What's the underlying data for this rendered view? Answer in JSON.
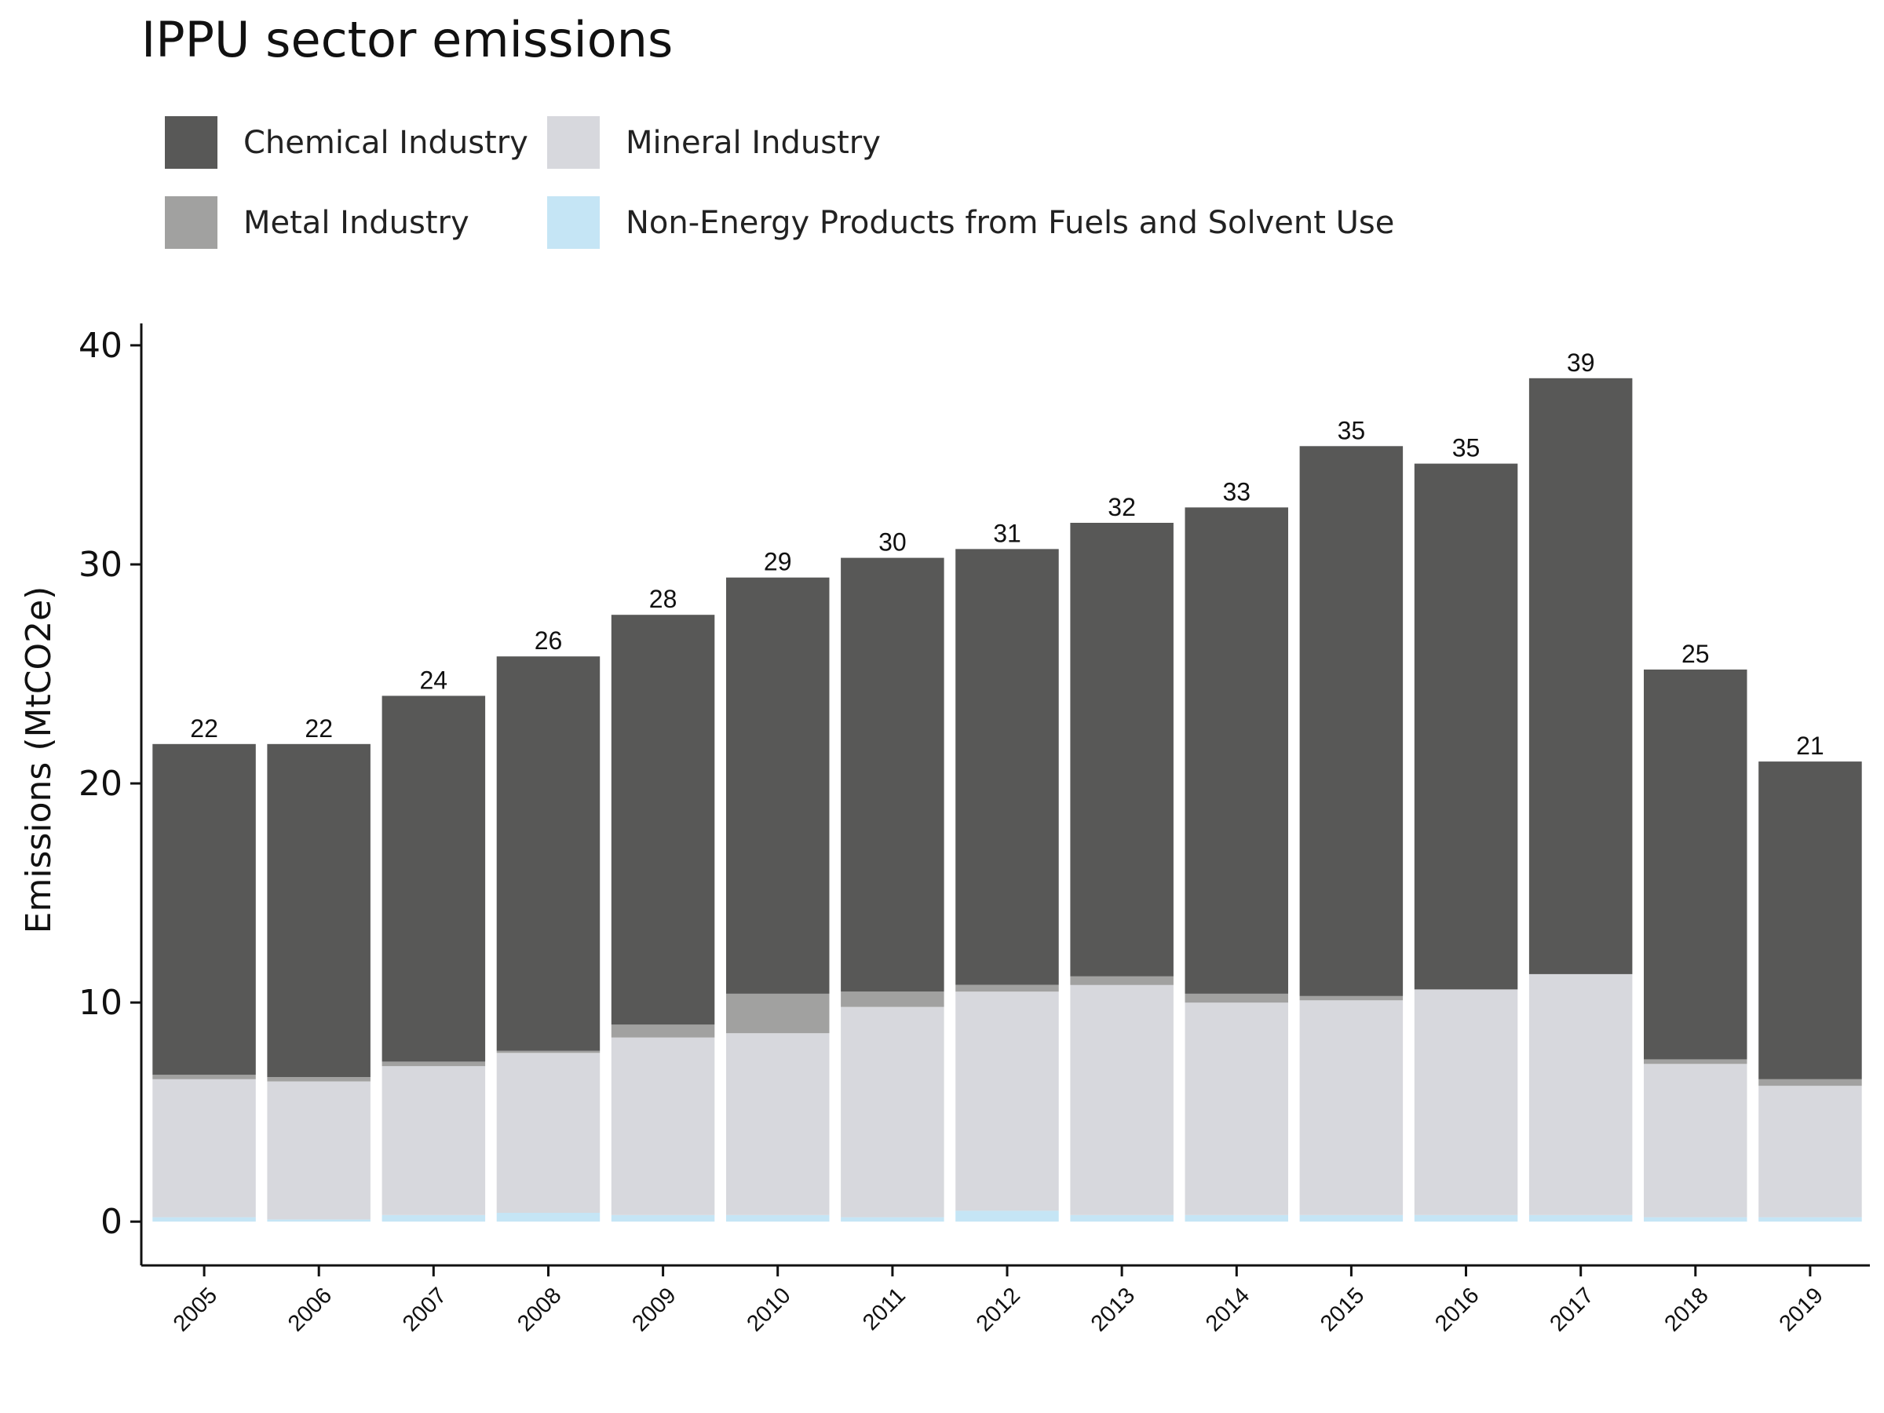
{
  "chart_data": {
    "type": "bar",
    "stacked": true,
    "title": "IPPU sector emissions",
    "xlabel": "",
    "ylabel": "Emissions (MtCO2e)",
    "ylim": [
      -2,
      41
    ],
    "yticks": [
      0,
      10,
      20,
      30,
      40
    ],
    "grid": false,
    "legend_position": "top",
    "categories": [
      "2005",
      "2006",
      "2007",
      "2008",
      "2009",
      "2010",
      "2011",
      "2012",
      "2013",
      "2014",
      "2015",
      "2016",
      "2017",
      "2018",
      "2019"
    ],
    "series": [
      {
        "name": "Non-Energy Products from Fuels and Solvent Use",
        "color": "#c5e5f5",
        "values": [
          0.2,
          0.1,
          0.3,
          0.4,
          0.3,
          0.3,
          0.2,
          0.5,
          0.3,
          0.3,
          0.3,
          0.3,
          0.3,
          0.2,
          0.2
        ]
      },
      {
        "name": "Mineral Industry",
        "color": "#d7d8dd",
        "values": [
          6.3,
          6.3,
          6.8,
          7.3,
          8.1,
          8.3,
          9.6,
          10.0,
          10.5,
          9.7,
          9.8,
          10.3,
          11.0,
          7.0,
          6.0
        ]
      },
      {
        "name": "Metal Industry",
        "color": "#a1a1a0",
        "values": [
          0.2,
          0.2,
          0.2,
          0.1,
          0.6,
          1.8,
          0.7,
          0.3,
          0.4,
          0.4,
          0.2,
          0.0,
          0.0,
          0.2,
          0.3
        ]
      },
      {
        "name": "Chemical Industry",
        "color": "#585857",
        "values": [
          15.1,
          15.2,
          16.7,
          18.0,
          18.7,
          19.0,
          19.8,
          19.9,
          20.7,
          22.2,
          25.1,
          24.0,
          27.2,
          17.8,
          14.5
        ]
      }
    ],
    "totals": [
      22,
      22,
      24,
      26,
      28,
      29,
      30,
      31,
      32,
      33,
      35,
      35,
      39,
      25,
      21
    ]
  }
}
